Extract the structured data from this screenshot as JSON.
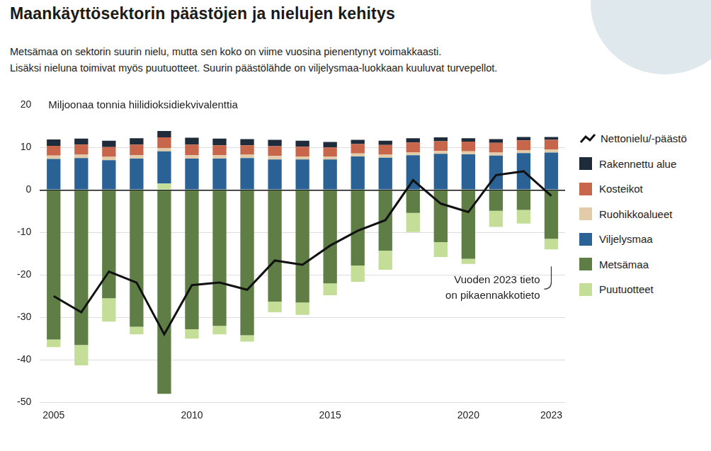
{
  "chart_data": {
    "type": "bar",
    "stacked": true,
    "title": "Maankäyttösektorin päästöjen ja nielujen kehitys",
    "subtitle": [
      "Metsämaa on sektorin suurin nielu, mutta sen koko on viime vuosina pienentynyt voimakkaasti.",
      "Lisäksi nieluna toimivat myös puutuotteet. Suurin päästölähde on viljelysmaa-luokkaan kuuluvat turvepellot."
    ],
    "y_label": "Miljoonaa tonnia hiilidioksidiekvivalenttia",
    "annotation": [
      "Vuoden 2023 tieto",
      "on pikaennakkotieto"
    ],
    "categories": [
      "2005",
      null,
      null,
      null,
      null,
      "2010",
      null,
      null,
      null,
      null,
      "2015",
      null,
      null,
      null,
      null,
      "2020",
      null,
      null,
      "2023"
    ],
    "series": [
      {
        "name": "Nettonielu/-päästö",
        "type": "line",
        "color": "#111111",
        "values": [
          -25.0,
          -28.8,
          -19.2,
          -21.8,
          -34.0,
          -22.4,
          -21.8,
          -23.5,
          -16.6,
          -17.6,
          -13.1,
          -9.6,
          -7.1,
          2.3,
          -3.2,
          -5.2,
          3.5,
          4.4,
          -1.4
        ]
      },
      {
        "name": "Rakennettu alue",
        "type": "bar",
        "color": "#1e2b3a",
        "values": [
          1.5,
          1.4,
          1.5,
          1.5,
          1.5,
          1.6,
          1.6,
          1.5,
          1.5,
          1.4,
          1.3,
          1.0,
          1.0,
          1.0,
          0.9,
          0.8,
          0.9,
          0.8,
          0.7
        ]
      },
      {
        "name": "Kosteikot",
        "type": "bar",
        "color": "#c8664c",
        "values": [
          2.3,
          2.4,
          2.3,
          2.5,
          2.5,
          2.5,
          2.3,
          2.2,
          2.3,
          2.3,
          2.1,
          2.2,
          2.3,
          2.3,
          2.3,
          2.3,
          2.3,
          2.3,
          2.3
        ]
      },
      {
        "name": "Ruohikkoalueet",
        "type": "bar",
        "color": "#e2cba8",
        "values": [
          0.8,
          0.8,
          0.8,
          0.8,
          0.8,
          0.8,
          0.8,
          0.8,
          0.8,
          0.7,
          0.7,
          0.7,
          0.7,
          0.7,
          0.7,
          0.7,
          0.7,
          0.7,
          0.7
        ]
      },
      {
        "name": "Viljelysmaa",
        "type": "bar",
        "color": "#2b6296",
        "values": [
          7.3,
          7.5,
          7.0,
          7.4,
          7.6,
          7.4,
          7.4,
          7.5,
          7.2,
          7.2,
          7.2,
          7.9,
          7.6,
          8.2,
          8.5,
          8.4,
          8.1,
          8.7,
          8.8
        ]
      },
      {
        "name": "Metsämaa",
        "type": "bar",
        "color": "#5e7e45",
        "values": [
          -35.2,
          -36.5,
          -25.5,
          -32.2,
          -48.0,
          -32.8,
          -32.0,
          -34.2,
          -26.3,
          -26.5,
          -22.0,
          -17.8,
          -14.3,
          -5.4,
          -12.3,
          -16.2,
          -4.9,
          -4.7,
          -11.5
        ]
      },
      {
        "name": "Puutuotteet",
        "type": "bar",
        "color": "#c4de98",
        "values": [
          -1.8,
          -4.8,
          -5.5,
          -1.8,
          1.5,
          -2.2,
          -2.0,
          -1.5,
          -2.5,
          -2.9,
          -2.8,
          -3.8,
          -4.5,
          -4.5,
          -3.5,
          -1.2,
          -3.8,
          -3.2,
          -2.5
        ]
      }
    ],
    "ylim": [
      -50,
      20
    ],
    "yticks": [
      -50,
      -40,
      -30,
      -20,
      -10,
      0,
      10,
      20
    ],
    "grid": true,
    "legend": "right"
  }
}
